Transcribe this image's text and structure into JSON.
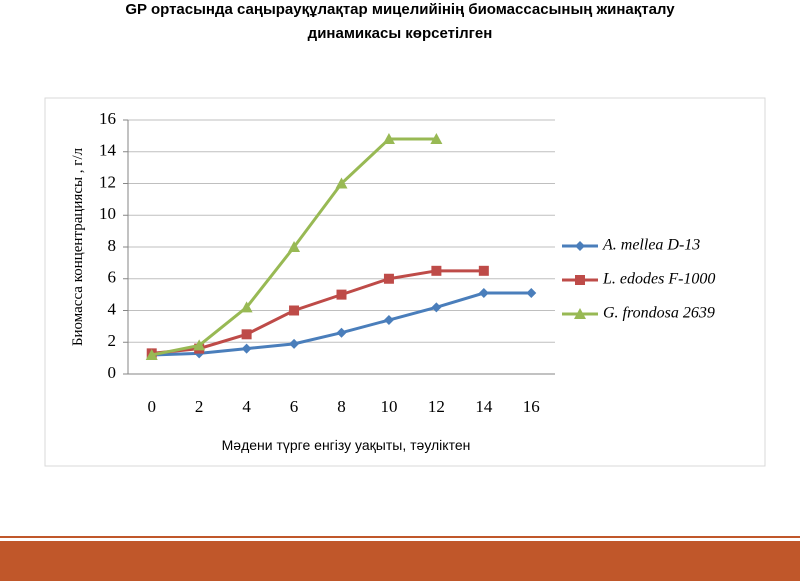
{
  "chart_data": {
    "type": "line",
    "title": [
      "GP ортасында саңырауқұлақтар мицелийінің биомассасының жинақталу",
      "динамикасы көрсетілген"
    ],
    "y_label": "Биомасса концентрациясы   , г/л",
    "x_label": "Мәдени түрге енгізу уақыты, тәуліктен",
    "categories": [
      "0",
      "2",
      "4",
      "6",
      "8",
      "10",
      "12",
      "14",
      "16"
    ],
    "series": [
      {
        "name": "A. mellea D-13",
        "color": "#4a7ebb",
        "marker": "diamond",
        "values": [
          1.2,
          1.3,
          1.6,
          1.9,
          2.6,
          3.4,
          4.2,
          5.1,
          5.1
        ]
      },
      {
        "name": "L. edodes F-1000",
        "color": "#be4b48",
        "marker": "square",
        "values": [
          1.3,
          1.6,
          2.5,
          4.0,
          5.0,
          6.0,
          6.5,
          6.5,
          null
        ]
      },
      {
        "name": "G. frondosa 2639",
        "color": "#98b954",
        "marker": "triangle",
        "values": [
          1.2,
          1.8,
          4.2,
          8.0,
          12.0,
          14.8,
          14.8,
          null,
          null
        ]
      }
    ],
    "ylim": [
      0,
      16
    ],
    "yticks": [
      0,
      2,
      4,
      6,
      8,
      10,
      12,
      14,
      16
    ],
    "grid": true,
    "legend": "right"
  }
}
